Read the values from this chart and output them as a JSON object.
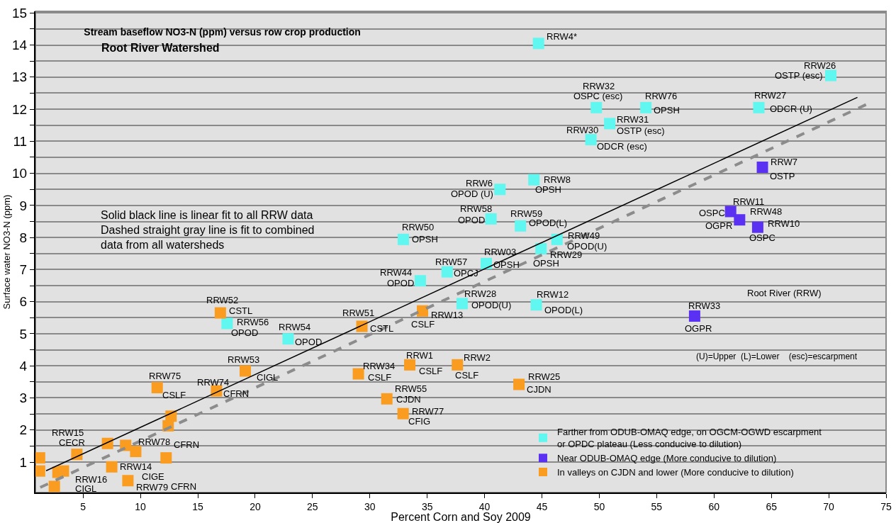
{
  "chart_data": {
    "type": "scatter",
    "title": "Stream baseflow NO3-N (ppm) versus row crop production",
    "subtitle": "Root River Watershed",
    "xlabel": "Percent Corn and Soy 2009",
    "ylabel": "Surface water NO3-N (ppm)",
    "xlim": [
      0.85,
      75
    ],
    "ylim": [
      0.05,
      15.05
    ],
    "xticks": [
      5,
      10,
      15,
      20,
      25,
      30,
      35,
      40,
      45,
      50,
      55,
      60,
      65,
      70,
      75
    ],
    "yticks": [
      1,
      {
        "value": 1.5,
        "label": null
      },
      2,
      {
        "value": 2.5,
        "label": null
      },
      3,
      {
        "value": 3.5,
        "label": null
      },
      4,
      {
        "value": 4.5,
        "label": null
      },
      5,
      {
        "value": 5.5,
        "label": null
      },
      6,
      {
        "value": 6.5,
        "label": null
      },
      7,
      {
        "value": 7.5,
        "label": null
      },
      8,
      {
        "value": 8.5,
        "label": null
      },
      9,
      {
        "value": 9.5,
        "label": null
      },
      10,
      {
        "value": 10.5,
        "label": null
      },
      11,
      {
        "value": 11.5,
        "label": null
      },
      12,
      {
        "value": 12.5,
        "label": null
      },
      13,
      {
        "value": 13.5,
        "label": null
      },
      14,
      {
        "value": 14.5,
        "label": null
      },
      15
    ],
    "grid": "y",
    "marker": "square",
    "legend": "bottom right",
    "series": [
      {
        "name": "Farther from ODUB-OMAQ edge, on OGCM-OGWD escarpment\nor OPDC plateau (Less conducive to dilution)",
        "color": "#5ff7ef",
        "x": [
          44.7,
          49.74,
          50.91,
          49.27,
          54.06,
          63.91,
          70.18,
          44.3,
          41.34,
          40.56,
          43.13,
          32.92,
          46.31,
          44.92,
          40.15,
          36.74,
          34.4,
          38.04,
          44.51,
          17.56,
          22.88
        ],
        "values": [
          14.05,
          12.05,
          11.55,
          11.05,
          12.05,
          12.05,
          13.05,
          9.8,
          9.5,
          8.58,
          8.36,
          7.94,
          7.94,
          7.65,
          7.19,
          6.93,
          6.65,
          5.94,
          5.9,
          5.32,
          4.84
        ]
      },
      {
        "name": "Near ODUB-OMAQ edge (More conducive to dilution)",
        "color": "#5a30f2",
        "x": [
          64.22,
          61.45,
          62.23,
          63.81,
          58.31
        ],
        "values": [
          10.19,
          8.81,
          8.55,
          8.32,
          5.55
        ]
      },
      {
        "name": "In valleys on CJDN and lower (More conducive to dilution)",
        "color": "#f99c1f",
        "x": [
          16.97,
          19.14,
          11.46,
          16.63,
          12.67,
          12.42,
          7.13,
          8.71,
          9.59,
          12.24,
          1.21,
          1.21,
          2.81,
          3.29,
          2.5,
          4.46,
          7.5,
          8.91,
          29.31,
          34.59,
          29.0,
          33.48,
          37.63,
          43.0,
          31.48,
          32.9
        ],
        "values": [
          5.65,
          3.84,
          3.32,
          3.22,
          2.43,
          2.13,
          1.58,
          1.52,
          1.33,
          1.13,
          1.13,
          0.72,
          0.68,
          0.72,
          0.24,
          1.24,
          0.85,
          0.42,
          5.23,
          5.71,
          3.75,
          4.03,
          4.03,
          3.42,
          2.97,
          2.51
        ]
      },
      {
        "type": "line",
        "marker": "none",
        "color": "#000000",
        "line_style": "solid",
        "x": [
          1.78,
          72.5
        ],
        "values": [
          0.73,
          12.37
        ]
      },
      {
        "type": "line",
        "marker": "none",
        "color": "#8c8c8c",
        "line_style": "dashed",
        "x": [
          1.27,
          73.36
        ],
        "values": [
          0.21,
          12.16
        ]
      }
    ],
    "annotations": [
      "Solid black line is linear fit to all RRW data\nDashed straight gray line is fit to combined\ndata from all watersheds",
      "Root River (RRW)",
      "(U)=Upper  (L)=Lower    (esc)=escarpment",
      {
        "text": "RRW4*",
        "x": 44.7,
        "y": 14.05
      },
      {
        "text": "RRW32",
        "x": 49.74,
        "y": 12.05
      },
      {
        "text": "OSPC (esc)",
        "x": 49.74,
        "y": 12.05
      },
      {
        "text": "RRW30",
        "x": 49.27,
        "y": 11.05
      },
      {
        "text": "ODCR (esc)",
        "x": 49.27,
        "y": 11.05
      },
      {
        "text": "RRW31",
        "x": 50.91,
        "y": 11.55
      },
      {
        "text": "OSTP (esc)",
        "x": 50.91,
        "y": 11.55
      },
      {
        "text": "RRW76",
        "x": 54.06,
        "y": 12.05
      },
      {
        "text": "OPSH",
        "x": 54.06,
        "y": 12.05
      },
      {
        "text": "RRW27",
        "x": 63.91,
        "y": 12.05
      },
      {
        "text": "ODCR (U)",
        "x": 63.91,
        "y": 12.05
      },
      {
        "text": "RRW26",
        "x": 70.18,
        "y": 13.05
      },
      {
        "text": "OSTP (esc)",
        "x": 70.18,
        "y": 13.05
      },
      {
        "text": "RRW7",
        "x": 64.22,
        "y": 10.19
      },
      {
        "text": "OSTP",
        "x": 64.22,
        "y": 10.19
      },
      {
        "text": "RRW11",
        "x": 61.45,
        "y": 8.81
      },
      {
        "text": "OSPC",
        "x": 61.45,
        "y": 8.81
      },
      {
        "text": "RRW48",
        "x": 62.23,
        "y": 8.55
      },
      {
        "text": "OGPR",
        "x": 62.23,
        "y": 8.55
      },
      {
        "text": "RRW10",
        "x": 63.81,
        "y": 8.32
      },
      {
        "text": "OSPC",
        "x": 63.81,
        "y": 8.32
      },
      {
        "text": "RRW33",
        "x": 58.31,
        "y": 5.55
      },
      {
        "text": "OGPR",
        "x": 58.31,
        "y": 5.55
      },
      {
        "text": "RRW8",
        "x": 44.3,
        "y": 9.8
      },
      {
        "text": "OPSH",
        "x": 44.3,
        "y": 9.8
      },
      {
        "text": "RRW6",
        "x": 41.34,
        "y": 9.5
      },
      {
        "text": "OPOD (U)",
        "x": 41.34,
        "y": 9.5
      },
      {
        "text": "RRW58",
        "x": 40.56,
        "y": 8.58
      },
      {
        "text": "OPOD",
        "x": 40.56,
        "y": 8.58
      },
      {
        "text": "RRW59",
        "x": 43.13,
        "y": 8.36
      },
      {
        "text": "OPOD(L)",
        "x": 43.13,
        "y": 8.36
      },
      {
        "text": "RRW50",
        "x": 32.92,
        "y": 7.94
      },
      {
        "text": "OPSH",
        "x": 32.92,
        "y": 7.94
      },
      {
        "text": "RRW49",
        "x": 46.31,
        "y": 7.94
      },
      {
        "text": "OPOD(U)",
        "x": 46.31,
        "y": 7.94
      },
      {
        "text": "RRW03",
        "x": 40.15,
        "y": 7.19
      },
      {
        "text": "OPSH",
        "x": 40.15,
        "y": 7.19
      },
      {
        "text": "RRW29",
        "x": 44.92,
        "y": 7.65
      },
      {
        "text": "OPSH",
        "x": 44.92,
        "y": 7.65
      },
      {
        "text": "RRW57",
        "x": 36.74,
        "y": 6.93
      },
      {
        "text": "OPCJ",
        "x": 36.74,
        "y": 6.93
      },
      {
        "text": "RRW44",
        "x": 34.4,
        "y": 6.65
      },
      {
        "text": "OPOD",
        "x": 34.4,
        "y": 6.65
      },
      {
        "text": "RRW28",
        "x": 38.04,
        "y": 5.94
      },
      {
        "text": "OPOD(U)",
        "x": 38.04,
        "y": 5.94
      },
      {
        "text": "RRW12",
        "x": 44.51,
        "y": 5.9
      },
      {
        "text": "OPOD(L)",
        "x": 44.51,
        "y": 5.9
      },
      {
        "text": "RRW13",
        "x": 34.59,
        "y": 5.71
      },
      {
        "text": "CSLF",
        "x": 34.59,
        "y": 5.71
      },
      {
        "text": "RRW51",
        "x": 29.31,
        "y": 5.23
      },
      {
        "text": "CSTL",
        "x": 29.31,
        "y": 5.23
      },
      {
        "text": "RRW1",
        "x": 33.48,
        "y": 4.03
      },
      {
        "text": "CSLF",
        "x": 33.48,
        "y": 4.03
      },
      {
        "text": "RRW2",
        "x": 37.63,
        "y": 4.03
      },
      {
        "text": "CSLF",
        "x": 37.63,
        "y": 4.03
      },
      {
        "text": "RRW34",
        "x": 29.0,
        "y": 3.75
      },
      {
        "text": "CSLF",
        "x": 29.0,
        "y": 3.75
      },
      {
        "text": "RRW25",
        "x": 43.0,
        "y": 3.42
      },
      {
        "text": "CJDN",
        "x": 43.0,
        "y": 3.42
      },
      {
        "text": "RRW55",
        "x": 31.48,
        "y": 2.97
      },
      {
        "text": "CJDN",
        "x": 31.48,
        "y": 2.97
      },
      {
        "text": "RRW77",
        "x": 32.9,
        "y": 2.51
      },
      {
        "text": "CFIG",
        "x": 32.9,
        "y": 2.51
      },
      {
        "text": "RRW52",
        "x": 16.97,
        "y": 5.65
      },
      {
        "text": "CSTL",
        "x": 16.97,
        "y": 5.65
      },
      {
        "text": "RRW56",
        "x": 17.56,
        "y": 5.32
      },
      {
        "text": "OPOD",
        "x": 17.56,
        "y": 5.32
      },
      {
        "text": "RRW54",
        "x": 22.88,
        "y": 4.84
      },
      {
        "text": "OPOD",
        "x": 22.88,
        "y": 4.84
      },
      {
        "text": "RRW53",
        "x": 19.14,
        "y": 3.84
      },
      {
        "text": "CIGL",
        "x": 19.14,
        "y": 3.84
      },
      {
        "text": "RRW75",
        "x": 11.46,
        "y": 3.32
      },
      {
        "text": "CSLF",
        "x": 11.46,
        "y": 3.32
      },
      {
        "text": "RRW74",
        "x": 16.63,
        "y": 3.22
      },
      {
        "text": "CFRN",
        "x": 16.63,
        "y": 3.22
      },
      {
        "text": "RRW15",
        "x": 4.46,
        "y": 1.24
      },
      {
        "text": "CECR",
        "x": 4.46,
        "y": 1.24
      },
      {
        "text": "RRW78",
        "x": 9.59,
        "y": 1.33
      },
      {
        "text": "CFRN",
        "x": 12.24,
        "y": 1.13
      },
      {
        "text": "RRW14",
        "x": 7.5,
        "y": 0.85
      },
      {
        "text": "CIGE",
        "x": 8.91,
        "y": 0.42
      },
      {
        "text": "RRW16",
        "x": 2.81,
        "y": 0.68
      },
      {
        "text": "CIGL",
        "x": 2.81,
        "y": 0.68
      },
      {
        "text": "RRW79",
        "x": 8.91,
        "y": 0.42
      },
      "CFRN"
    ]
  }
}
